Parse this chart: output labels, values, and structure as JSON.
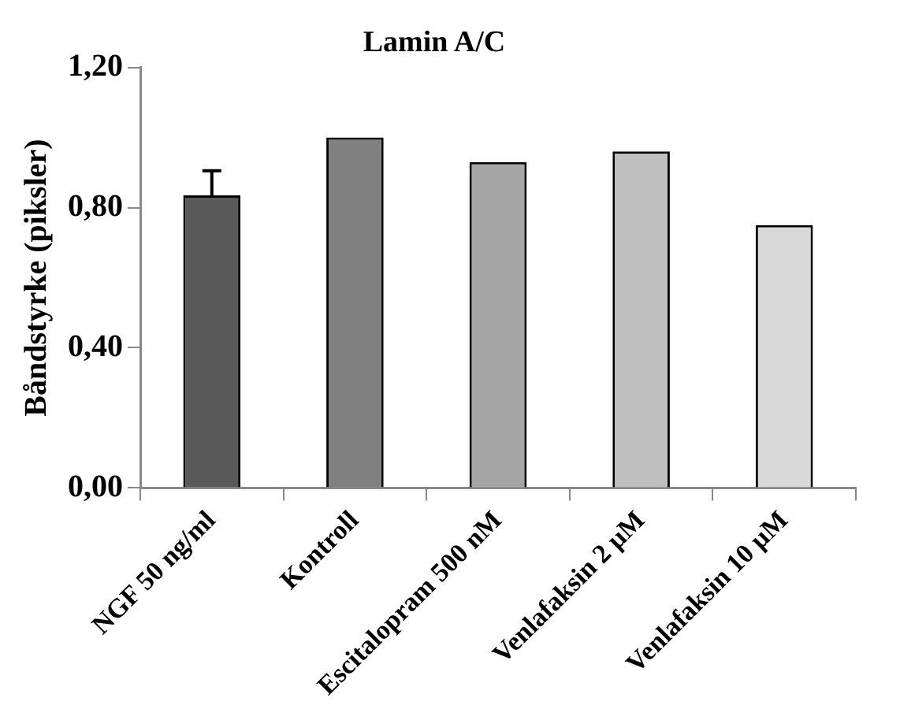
{
  "chart_data": {
    "type": "bar",
    "title": "Lamin A/C",
    "ylabel": "Båndstyrke (piksler)",
    "categories": [
      "NGF 50 ng/ml",
      "Kontroll",
      "Escitalopram 500 nM",
      "Venlafaksin 2 µM",
      "Venlafaksin 10 µM"
    ],
    "values": [
      0.835,
      1.0,
      0.93,
      0.96,
      0.75
    ],
    "errors": [
      [
        0.835,
        0.905
      ],
      null,
      null,
      null,
      null
    ],
    "colors": [
      "#595959",
      "#808080",
      "#a6a6a6",
      "#bfbfbf",
      "#d9d9d9"
    ],
    "ylim": [
      0,
      1.2
    ],
    "yticks": [
      {
        "value": 0,
        "label": "0,00"
      },
      {
        "value": 0.4,
        "label": "0,40"
      },
      {
        "value": 0.8,
        "label": "0,80"
      },
      {
        "value": 1.2,
        "label": "1,20"
      }
    ],
    "grid": false,
    "legend": false
  }
}
